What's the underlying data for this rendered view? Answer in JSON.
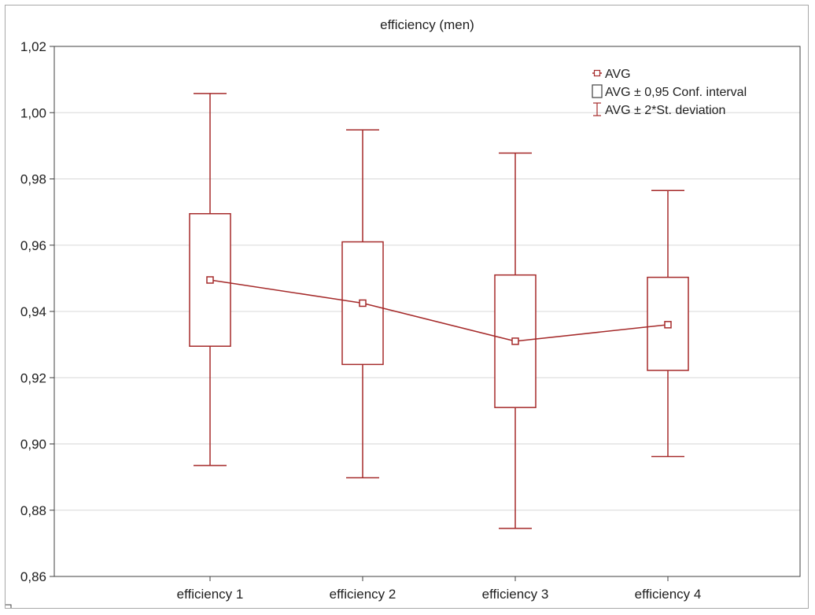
{
  "chart_data": {
    "type": "box",
    "title": "efficiency (men)",
    "xlabel": "",
    "ylabel": "",
    "categories": [
      "efficiency 1",
      "efficiency 2",
      "efficiency 3",
      "efficiency 4"
    ],
    "series": [
      {
        "name": "AVG",
        "values": [
          0.9495,
          0.9425,
          0.931,
          0.936
        ]
      }
    ],
    "conf_interval_95": [
      [
        0.9295,
        0.9695
      ],
      [
        0.924,
        0.961
      ],
      [
        0.911,
        0.951
      ],
      [
        0.9222,
        0.9503
      ]
    ],
    "two_sd": [
      [
        0.8935,
        1.0058
      ],
      [
        0.8898,
        0.9948
      ],
      [
        0.8745,
        0.9878
      ],
      [
        0.8962,
        0.9765
      ]
    ],
    "ylim": [
      0.86,
      1.02
    ],
    "yticks": [
      0.86,
      0.88,
      0.9,
      0.92,
      0.94,
      0.96,
      0.98,
      1.0,
      1.02
    ],
    "ytick_labels": [
      "0,86",
      "0,88",
      "0,90",
      "0,92",
      "0,94",
      "0,96",
      "0,98",
      "1,00",
      "1,02"
    ],
    "grid": "horizontal",
    "legend_position": "top-right",
    "legend": [
      {
        "label": "AVG",
        "symbol": "marker-line-icon"
      },
      {
        "label": "AVG ± 0,95 Conf. interval",
        "symbol": "box-icon"
      },
      {
        "label": "AVG ± 2*St. deviation",
        "symbol": "whisker-icon"
      }
    ],
    "colors": {
      "series": "#a52a2a",
      "grid": "#d8d8d8",
      "axis": "#404040"
    }
  }
}
